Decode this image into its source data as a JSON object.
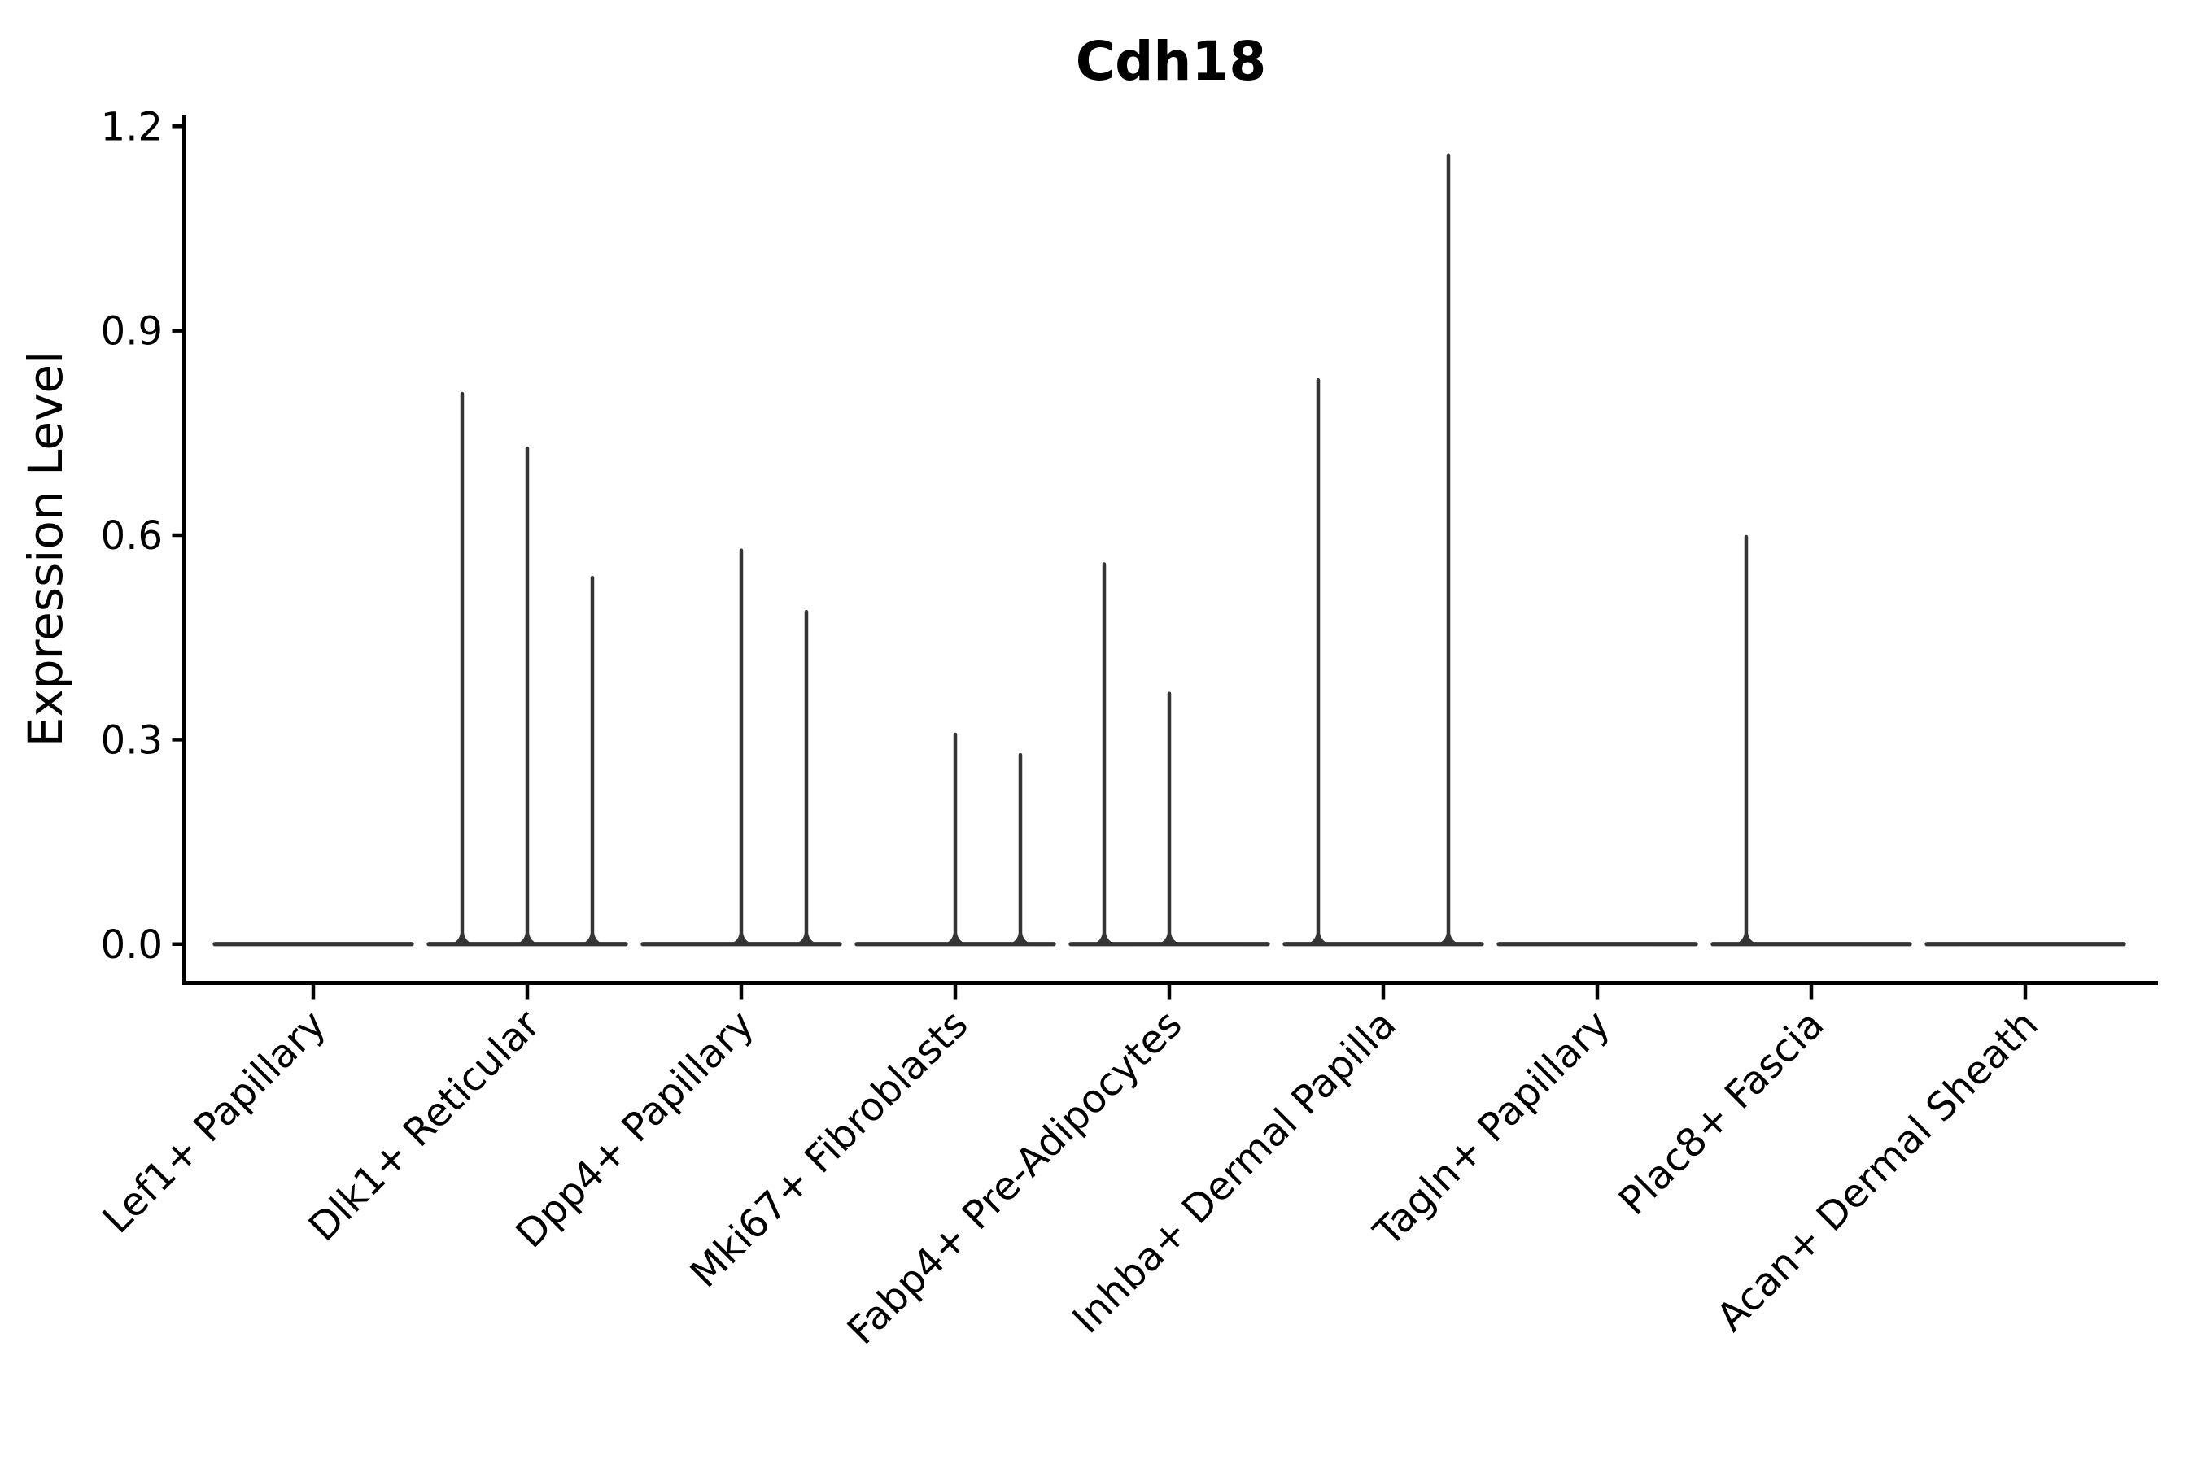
{
  "figure": {
    "title": "Cdh18",
    "ylabel": "Expression Level"
  },
  "chart_data": {
    "type": "violin",
    "title": "Cdh18",
    "xlabel": "",
    "ylabel": "Expression Level",
    "ylim": [
      0.0,
      1.2
    ],
    "yticks": [
      0.0,
      0.3,
      0.6,
      0.9,
      1.2
    ],
    "ytick_labels": [
      "0.0",
      "0.3",
      "0.6",
      "0.9",
      "1.2"
    ],
    "grid": false,
    "legend_position": "none",
    "axis_color": "#000000",
    "violin_color": "#343434",
    "background_color": "#ffffff",
    "categories": [
      "Lef1+ Papillary",
      "Dlk1+ Reticular",
      "Dpp4+ Papillary",
      "Mki67+ Fibroblasts",
      "Fabp4+ Pre-Adipocytes",
      "Inhba+ Dermal Papilla",
      "Tagln+ Papillary",
      "Plac8+ Fascia",
      "Acan+ Dermal Sheath"
    ],
    "violins": [
      {
        "category": "Lef1+ Papillary",
        "baseline_value": 0.0,
        "spikes": []
      },
      {
        "category": "Dlk1+ Reticular",
        "baseline_value": 0.0,
        "spikes": [
          {
            "slot": -1,
            "max": 0.81
          },
          {
            "slot": 0,
            "max": 0.73
          },
          {
            "slot": 1,
            "max": 0.54
          }
        ]
      },
      {
        "category": "Dpp4+ Papillary",
        "baseline_value": 0.0,
        "spikes": [
          {
            "slot": 0,
            "max": 0.58
          },
          {
            "slot": 1,
            "max": 0.49
          }
        ]
      },
      {
        "category": "Mki67+ Fibroblasts",
        "baseline_value": 0.0,
        "spikes": [
          {
            "slot": 0,
            "max": 0.31
          },
          {
            "slot": 1,
            "max": 0.28
          }
        ]
      },
      {
        "category": "Fabp4+ Pre-Adipocytes",
        "baseline_value": 0.0,
        "spikes": [
          {
            "slot": -1,
            "max": 0.56
          },
          {
            "slot": 0,
            "max": 0.37
          }
        ]
      },
      {
        "category": "Inhba+ Dermal Papilla",
        "baseline_value": 0.0,
        "spikes": [
          {
            "slot": -1,
            "max": 0.83
          },
          {
            "slot": 1,
            "max": 1.16
          }
        ]
      },
      {
        "category": "Tagln+ Papillary",
        "baseline_value": 0.0,
        "spikes": []
      },
      {
        "category": "Plac8+ Fascia",
        "baseline_value": 0.0,
        "spikes": [
          {
            "slot": -1,
            "max": 0.6
          }
        ]
      },
      {
        "category": "Acan+ Dermal Sheath",
        "baseline_value": 0.0,
        "spikes": []
      }
    ],
    "notes": "Violin plot; each violin is collapsed to a flat line at expression 0 with thin vertical density spikes. slot = sub-position within a category (-1 left, 0 center, +1 right)."
  }
}
